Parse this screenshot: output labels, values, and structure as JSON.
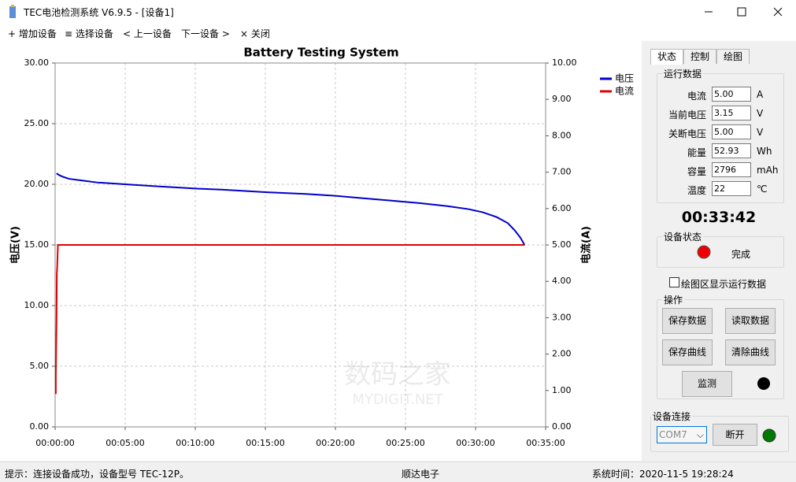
{
  "window": {
    "title": "TEC电池检测系统 V6.9.5 - [设备1]"
  },
  "menu": [
    "+ 增加设备",
    "≡ 选择设备",
    "< 上一设备",
    "下一设备 >",
    "× 关闭"
  ],
  "chart_data": {
    "type": "line",
    "title": "Battery Testing System",
    "y_label": "电压(V)",
    "y2_label": "电流(A)",
    "xlim": [
      0,
      35
    ],
    "xticks": [
      {
        "value": 0,
        "label": "00:00:00"
      },
      {
        "value": 5,
        "label": "00:05:00"
      },
      {
        "value": 10,
        "label": "00:10:00"
      },
      {
        "value": 15,
        "label": "00:15:00"
      },
      {
        "value": 20,
        "label": "00:20:00"
      },
      {
        "value": 25,
        "label": "00:25:00"
      },
      {
        "value": 30,
        "label": "00:30:00"
      },
      {
        "value": 35,
        "label": "00:35:00"
      }
    ],
    "ylim": [
      0,
      30
    ],
    "yticks": [
      {
        "value": 0,
        "label": "0.00"
      },
      {
        "value": 5,
        "label": "5.00"
      },
      {
        "value": 10,
        "label": "10.00"
      },
      {
        "value": 15,
        "label": "15.00"
      },
      {
        "value": 20,
        "label": "20.00"
      },
      {
        "value": 25,
        "label": "25.00"
      },
      {
        "value": 30,
        "label": "30.00"
      }
    ],
    "y2lim": [
      0,
      10
    ],
    "y2ticks": [
      {
        "value": 0,
        "label": "0.00"
      },
      {
        "value": 1,
        "label": "1.00"
      },
      {
        "value": 2,
        "label": "2.00"
      },
      {
        "value": 3,
        "label": "3.00"
      },
      {
        "value": 4,
        "label": "4.00"
      },
      {
        "value": 5,
        "label": "5.00"
      },
      {
        "value": 6,
        "label": "6.00"
      },
      {
        "value": 7,
        "label": "7.00"
      },
      {
        "value": 8,
        "label": "8.00"
      },
      {
        "value": 9,
        "label": "9.00"
      },
      {
        "value": 10,
        "label": "10.00"
      }
    ],
    "grid": true,
    "legend": "right",
    "series": [
      {
        "name": "电压",
        "color": "#0000cc",
        "x": [
          0.1,
          0.3,
          0.6,
          1,
          2,
          3,
          5,
          7,
          10,
          12,
          15,
          18,
          20,
          22,
          24,
          26,
          28,
          29.5,
          30.5,
          31.5,
          32.3,
          32.8,
          33.2,
          33.5
        ],
        "values": [
          20.9,
          20.75,
          20.6,
          20.45,
          20.3,
          20.15,
          20.0,
          19.85,
          19.65,
          19.55,
          19.35,
          19.2,
          19.05,
          18.85,
          18.65,
          18.45,
          18.2,
          17.95,
          17.7,
          17.3,
          16.8,
          16.2,
          15.6,
          15.0
        ]
      },
      {
        "name": "电流",
        "color": "#e00000",
        "axis": "y2",
        "x": [
          0.05,
          0.05,
          0.1,
          0.12,
          0.15,
          0.2,
          33.5
        ],
        "values": [
          0.9,
          1.4,
          3.0,
          4.2,
          4.4,
          5.0,
          5.0
        ]
      }
    ]
  },
  "watermark": [
    "数码之家",
    "MYDIGIT.NET"
  ],
  "panel": {
    "tabs": [
      "状态",
      "控制",
      "绘图"
    ],
    "run_data": {
      "title": "运行数据",
      "rows": [
        {
          "label": "电流",
          "value": "5.00",
          "unit": "A"
        },
        {
          "label": "当前电压",
          "value": "3.15",
          "unit": "V"
        },
        {
          "label": "关断电压",
          "value": "5.00",
          "unit": "V"
        },
        {
          "label": "能量",
          "value": "52.93",
          "unit": "Wh"
        },
        {
          "label": "容量",
          "value": "2796",
          "unit": "mAh"
        },
        {
          "label": "温度",
          "value": "22",
          "unit": "℃"
        }
      ]
    },
    "elapsed": "00:33:42",
    "device_status": {
      "title": "设备状态",
      "text": "完成"
    },
    "checkbox": "绘图区显示运行数据",
    "operations": {
      "title": "操作",
      "buttons": [
        "保存数据",
        "读取数据",
        "保存曲线",
        "清除曲线"
      ],
      "monitor": "监测"
    },
    "connection": {
      "title": "设备连接",
      "port": "COM7",
      "button": "断开"
    }
  },
  "status_bar": [
    "提示：连接设备成功，设备型号 TEC-12P。",
    "顺达电子",
    "系统时间：2020-11-5 19:28:24"
  ]
}
